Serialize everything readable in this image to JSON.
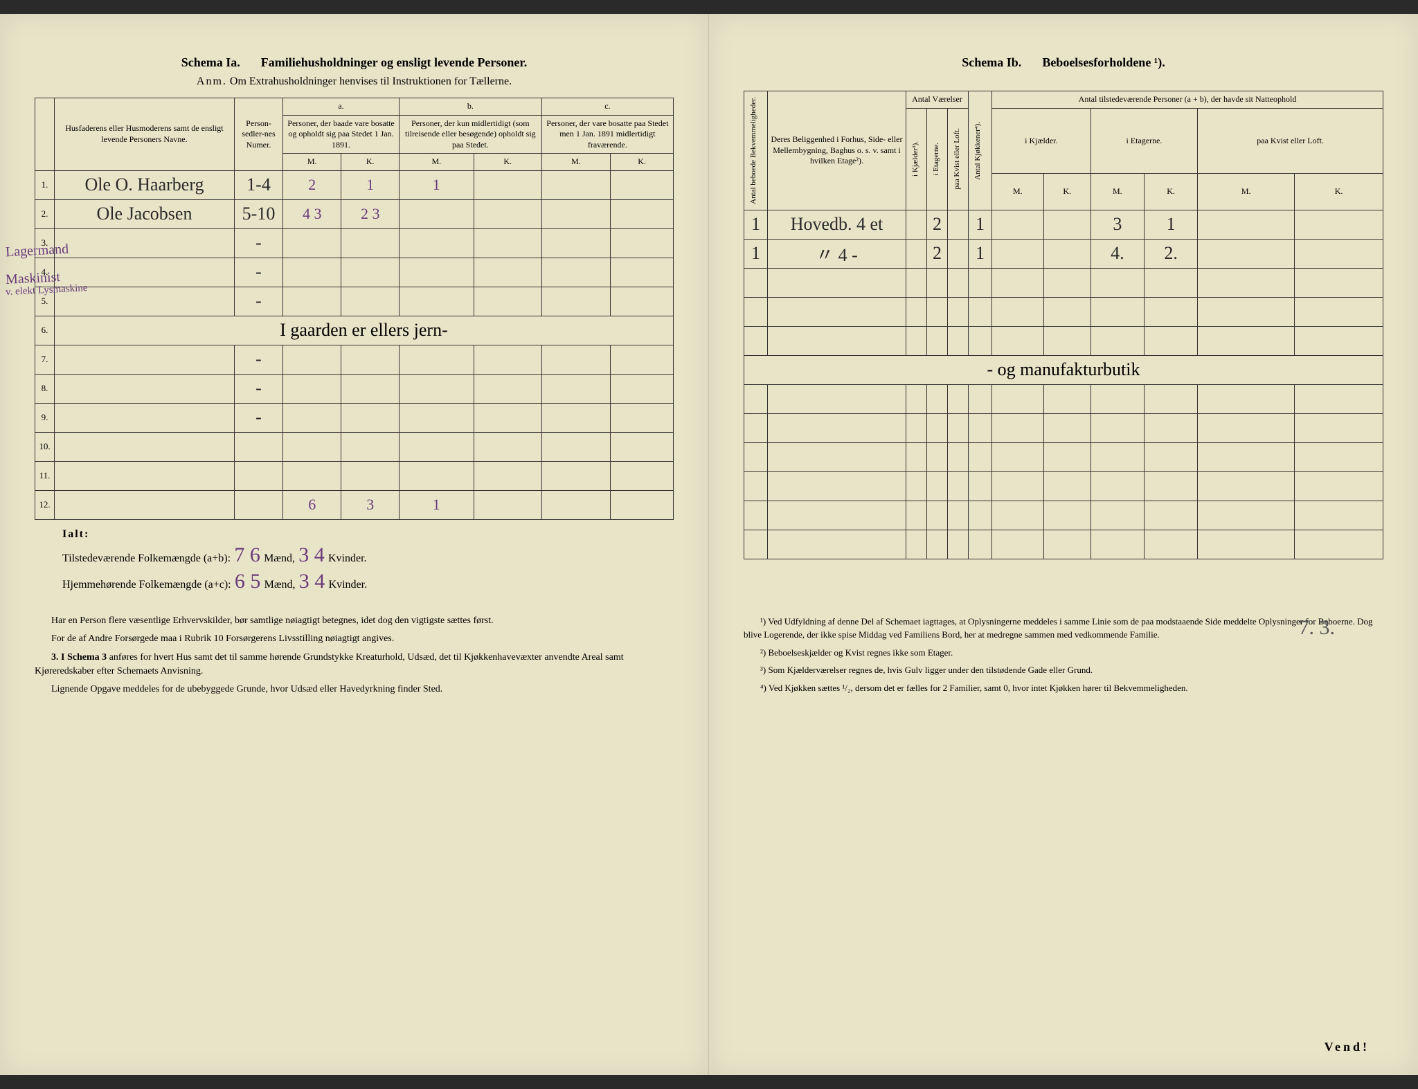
{
  "left": {
    "schema": "Schema Ia.",
    "title": "Familiehusholdninger og ensligt levende Personer.",
    "subtitle_anm": "Anm.",
    "subtitle": "Om Extrahusholdninger henvises til Instruktionen for Tællerne.",
    "headers": {
      "col_name": "Husfaderens eller Husmoderens samt de ensligt levende Personers Navne.",
      "col_person": "Person-sedler-nes Numer.",
      "a": "a.",
      "a_text": "Personer, der baade vare bosatte og opholdt sig paa Stedet 1 Jan. 1891.",
      "b": "b.",
      "b_text": "Personer, der kun midlertidigt (som tilreisende eller besøgende) opholdt sig paa Stedet.",
      "c": "c.",
      "c_text": "Personer, der vare bosatte paa Stedet men 1 Jan. 1891 midlertidigt fraværende.",
      "M": "M.",
      "K": "K."
    },
    "margin_notes": {
      "row1": "Lagermand",
      "row2_line1": "Maskinist",
      "row2_line2": "v. elekt Lysmaskine"
    },
    "rows": [
      {
        "n": "1.",
        "name": "Ole O. Haarberg",
        "person": "1-4",
        "aM": "2",
        "aK": "1",
        "bM": "1",
        "bK": "",
        "cM": "",
        "cK": ""
      },
      {
        "n": "2.",
        "name": "Ole Jacobsen",
        "person": "5-10",
        "aM": "4 3",
        "aK": "2 3",
        "bM": "",
        "bK": "",
        "cM": "",
        "cK": ""
      },
      {
        "n": "3.",
        "name": "",
        "person": "-",
        "aM": "",
        "aK": "",
        "bM": "",
        "bK": "",
        "cM": "",
        "cK": ""
      },
      {
        "n": "4.",
        "name": "",
        "person": "-",
        "aM": "",
        "aK": "",
        "bM": "",
        "bK": "",
        "cM": "",
        "cK": ""
      },
      {
        "n": "5.",
        "name": "",
        "person": "-",
        "aM": "",
        "aK": "",
        "bM": "",
        "bK": "",
        "cM": "",
        "cK": ""
      },
      {
        "n": "6.",
        "name": "I gaarden er ellers jern-",
        "person": "",
        "aM": "",
        "aK": "",
        "bM": "",
        "bK": "",
        "cM": "",
        "cK": ""
      },
      {
        "n": "7.",
        "name": "",
        "person": "-",
        "aM": "",
        "aK": "",
        "bM": "",
        "bK": "",
        "cM": "",
        "cK": ""
      },
      {
        "n": "8.",
        "name": "",
        "person": "-",
        "aM": "",
        "aK": "",
        "bM": "",
        "bK": "",
        "cM": "",
        "cK": ""
      },
      {
        "n": "9.",
        "name": "",
        "person": "-",
        "aM": "",
        "aK": "",
        "bM": "",
        "bK": "",
        "cM": "",
        "cK": ""
      },
      {
        "n": "10.",
        "name": "",
        "person": "",
        "aM": "",
        "aK": "",
        "bM": "",
        "bK": "",
        "cM": "",
        "cK": ""
      },
      {
        "n": "11.",
        "name": "",
        "person": "",
        "aM": "",
        "aK": "",
        "bM": "",
        "bK": "",
        "cM": "",
        "cK": ""
      },
      {
        "n": "12.",
        "name": "",
        "person": "",
        "aM": "6",
        "aK": "3",
        "bM": "1",
        "bK": "",
        "cM": "",
        "cK": ""
      }
    ],
    "totals": {
      "ialt": "Ialt:",
      "line1_label": "Tilstedeværende Folkemængde (a+b):",
      "line1_m": "7 6",
      "line1_mid": "Mænd,",
      "line1_k": "3 4",
      "line1_end": "Kvinder.",
      "line2_label": "Hjemmehørende Folkemængde (a+c):",
      "line2_m": "6 5",
      "line2_mid": "Mænd,",
      "line2_k": "3 4",
      "line2_end": "Kvinder."
    },
    "instructions": {
      "p1": "Har en Person flere væsentlige Erhvervskilder, bør samtlige nøiagtigt betegnes, idet dog den vigtigste sættes først.",
      "p2": "For de af Andre Forsørgede maa i Rubrik 10 Forsørgerens Livsstilling nøiagtigt angives.",
      "p3_lead": "3. I Schema 3",
      "p3": "anføres for hvert Hus samt det til samme hørende Grundstykke Kreaturhold, Udsæd, det til Kjøkkenhavevæxter anvendte Areal samt Kjøreredskaber efter Schemaets Anvisning.",
      "p4": "Lignende Opgave meddeles for de ubebyggede Grunde, hvor Udsæd eller Havedyrkning finder Sted."
    }
  },
  "right": {
    "schema": "Schema Ib.",
    "title": "Beboelsesforholdene ¹).",
    "headers": {
      "col_antal_bek": "Antal beboede Bekvemmeligheder.",
      "col_belig": "Deres Beliggenhed i Forhus, Side- eller Mellembygning, Baghus o. s. v. samt i hvilken Etage²).",
      "antal_vaer": "Antal Værelser",
      "i_kjaelder": "i Kjælder³).",
      "i_etagerne": "i Etagerne.",
      "paa_kvist": "paa Kvist eller Loft.",
      "antal_kjok": "Antal Kjøkkener⁴).",
      "antal_tilst": "Antal tilstedeværende Personer (a + b), der havde sit Natteophold",
      "i_kjael": "i Kjælder.",
      "i_etag": "i Etagerne.",
      "paa_kvist2": "paa Kvist eller Loft.",
      "M": "M.",
      "K": "K."
    },
    "rows": [
      {
        "bek": "1",
        "belig": "Hovedb. 4 et",
        "kj": "",
        "et": "2",
        "kv": "",
        "kjok": "1",
        "kM": "",
        "kK": "",
        "eM": "3",
        "eK": "1",
        "lM": "",
        "lK": ""
      },
      {
        "bek": "1",
        "belig": "〃    4 -",
        "kj": "",
        "et": "2",
        "kv": "",
        "kjok": "1",
        "kM": "",
        "kK": "",
        "eM": "4.",
        "eK": "2.",
        "lM": "",
        "lK": ""
      },
      {
        "bek": "",
        "belig": "",
        "kj": "",
        "et": "",
        "kv": "",
        "kjok": "",
        "kM": "",
        "kK": "",
        "eM": "",
        "eK": "",
        "lM": "",
        "lK": ""
      },
      {
        "bek": "",
        "belig": "",
        "kj": "",
        "et": "",
        "kv": "",
        "kjok": "",
        "kM": "",
        "kK": "",
        "eM": "",
        "eK": "",
        "lM": "",
        "lK": ""
      },
      {
        "bek": "",
        "belig": "",
        "kj": "",
        "et": "",
        "kv": "",
        "kjok": "",
        "kM": "",
        "kK": "",
        "eM": "",
        "eK": "",
        "lM": "",
        "lK": ""
      },
      {
        "bek": "",
        "belig": "- og manufakturbutik",
        "kj": "",
        "et": "",
        "kv": "",
        "kjok": "",
        "kM": "",
        "kK": "",
        "eM": "",
        "eK": "",
        "lM": "",
        "lK": ""
      },
      {
        "bek": "",
        "belig": "",
        "kj": "",
        "et": "",
        "kv": "",
        "kjok": "",
        "kM": "",
        "kK": "",
        "eM": "",
        "eK": "",
        "lM": "",
        "lK": ""
      },
      {
        "bek": "",
        "belig": "",
        "kj": "",
        "et": "",
        "kv": "",
        "kjok": "",
        "kM": "",
        "kK": "",
        "eM": "",
        "eK": "",
        "lM": "",
        "lK": ""
      },
      {
        "bek": "",
        "belig": "",
        "kj": "",
        "et": "",
        "kv": "",
        "kjok": "",
        "kM": "",
        "kK": "",
        "eM": "",
        "eK": "",
        "lM": "",
        "lK": ""
      },
      {
        "bek": "",
        "belig": "",
        "kj": "",
        "et": "",
        "kv": "",
        "kjok": "",
        "kM": "",
        "kK": "",
        "eM": "",
        "eK": "",
        "lM": "",
        "lK": ""
      },
      {
        "bek": "",
        "belig": "",
        "kj": "",
        "et": "",
        "kv": "",
        "kjok": "",
        "kM": "",
        "kK": "",
        "eM": "",
        "eK": "",
        "lM": "",
        "lK": ""
      },
      {
        "bek": "",
        "belig": "",
        "kj": "",
        "et": "",
        "kv": "",
        "kjok": "",
        "kM": "",
        "kK": "",
        "eM": "",
        "eK": "",
        "lM": "",
        "lK": ""
      }
    ],
    "bottom_hand": "7. 3.",
    "footnotes": {
      "f1": "¹) Ved Udfyldning af denne Del af Schemaet iagttages, at Oplysningerne meddeles i samme Linie som de paa modstaaende Side meddelte Oplysninger for Beboerne. Dog blive Logerende, der ikke spise Middag ved Familiens Bord, her at medregne sammen med vedkommende Familie.",
      "f2": "²) Beboelseskjælder og Kvist regnes ikke som Etager.",
      "f3": "³) Som Kjælderværelser regnes de, hvis Gulv ligger under den tilstødende Gade eller Grund.",
      "f4": "⁴) Ved Kjøkken sættes ¹/₂, dersom det er fælles for 2 Familier, samt 0, hvor intet Kjøkken hører til Bekvemmeligheden."
    },
    "vend": "Vend!"
  },
  "colors": {
    "paper": "#e8e4c8",
    "ink": "#2a2a2a",
    "purple": "#6a3a7a",
    "border": "#333333"
  }
}
